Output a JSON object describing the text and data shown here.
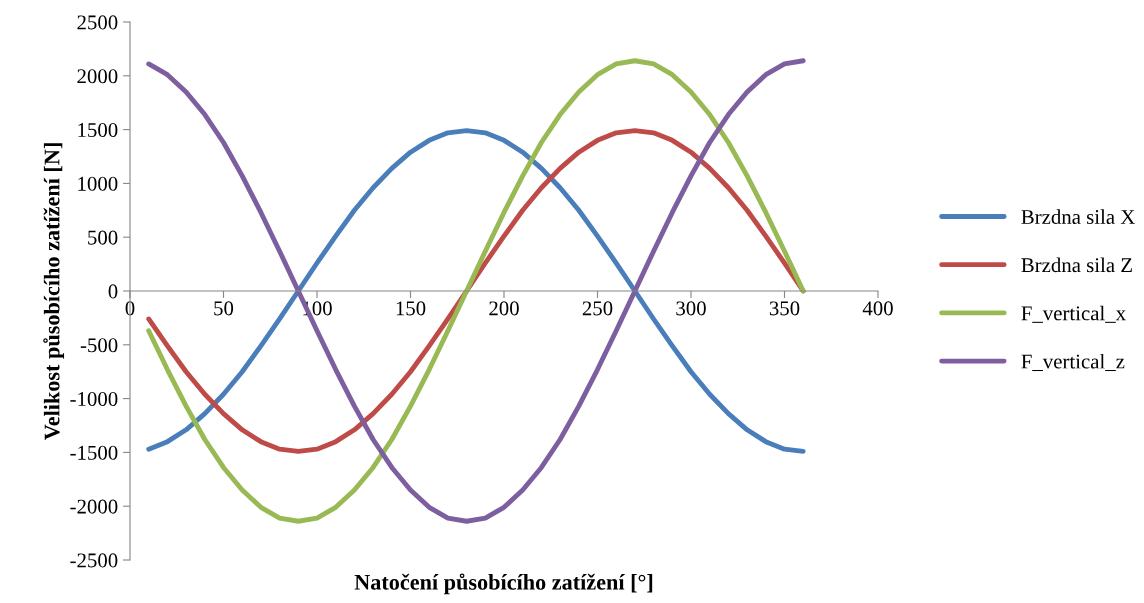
{
  "chart_data": {
    "type": "line",
    "xlabel": "Natočení působícího zatížení [°]",
    "ylabel": "Velikost působícího zatížení [N]",
    "x": [
      10,
      20,
      30,
      40,
      50,
      60,
      70,
      80,
      90,
      100,
      110,
      120,
      130,
      140,
      150,
      160,
      170,
      180,
      190,
      200,
      210,
      220,
      230,
      240,
      250,
      260,
      270,
      280,
      290,
      300,
      310,
      320,
      330,
      340,
      350,
      360
    ],
    "series": [
      {
        "name": "Brzdna sila X",
        "color": "#4a7ebb",
        "values": [
          -1470,
          -1400,
          -1290,
          -1140,
          -960,
          -750,
          -510,
          -260,
          0,
          260,
          510,
          750,
          960,
          1140,
          1290,
          1400,
          1470,
          1490,
          1470,
          1400,
          1290,
          1140,
          960,
          750,
          510,
          260,
          0,
          -260,
          -510,
          -750,
          -960,
          -1140,
          -1290,
          -1400,
          -1470,
          -1490
        ]
      },
      {
        "name": "Brzdna sila Z",
        "color": "#be4b48",
        "values": [
          -260,
          -510,
          -750,
          -960,
          -1140,
          -1290,
          -1400,
          -1470,
          -1490,
          -1470,
          -1400,
          -1290,
          -1140,
          -960,
          -750,
          -510,
          -260,
          0,
          260,
          510,
          750,
          960,
          1140,
          1290,
          1400,
          1470,
          1490,
          1470,
          1400,
          1290,
          1140,
          960,
          750,
          510,
          260,
          0
        ]
      },
      {
        "name": "F_vertical_x",
        "color": "#98b954",
        "values": [
          -370,
          -730,
          -1070,
          -1380,
          -1640,
          -1850,
          -2010,
          -2110,
          -2140,
          -2110,
          -2010,
          -1850,
          -1640,
          -1380,
          -1070,
          -730,
          -370,
          0,
          370,
          730,
          1070,
          1380,
          1640,
          1850,
          2010,
          2110,
          2140,
          2110,
          2010,
          1850,
          1640,
          1380,
          1070,
          730,
          370,
          0
        ]
      },
      {
        "name": "F_vertical_z",
        "color": "#7d5fa0",
        "values": [
          2110,
          2010,
          1850,
          1640,
          1380,
          1070,
          730,
          370,
          0,
          -370,
          -730,
          -1070,
          -1380,
          -1640,
          -1850,
          -2010,
          -2110,
          -2140,
          -2110,
          -2010,
          -1850,
          -1640,
          -1380,
          -1070,
          -730,
          -370,
          0,
          370,
          730,
          1070,
          1380,
          1640,
          1850,
          2010,
          2110,
          2140
        ]
      }
    ],
    "xlim": [
      0,
      400
    ],
    "xticks": [
      0,
      50,
      100,
      150,
      200,
      250,
      300,
      350,
      400
    ],
    "ylim": [
      -2500,
      2500
    ],
    "yticks": [
      -2500,
      -2000,
      -1500,
      -1000,
      -500,
      0,
      500,
      1000,
      1500,
      2000,
      2500
    ],
    "grid": false,
    "legend": "right",
    "marker": "none",
    "line_style": "solid"
  }
}
